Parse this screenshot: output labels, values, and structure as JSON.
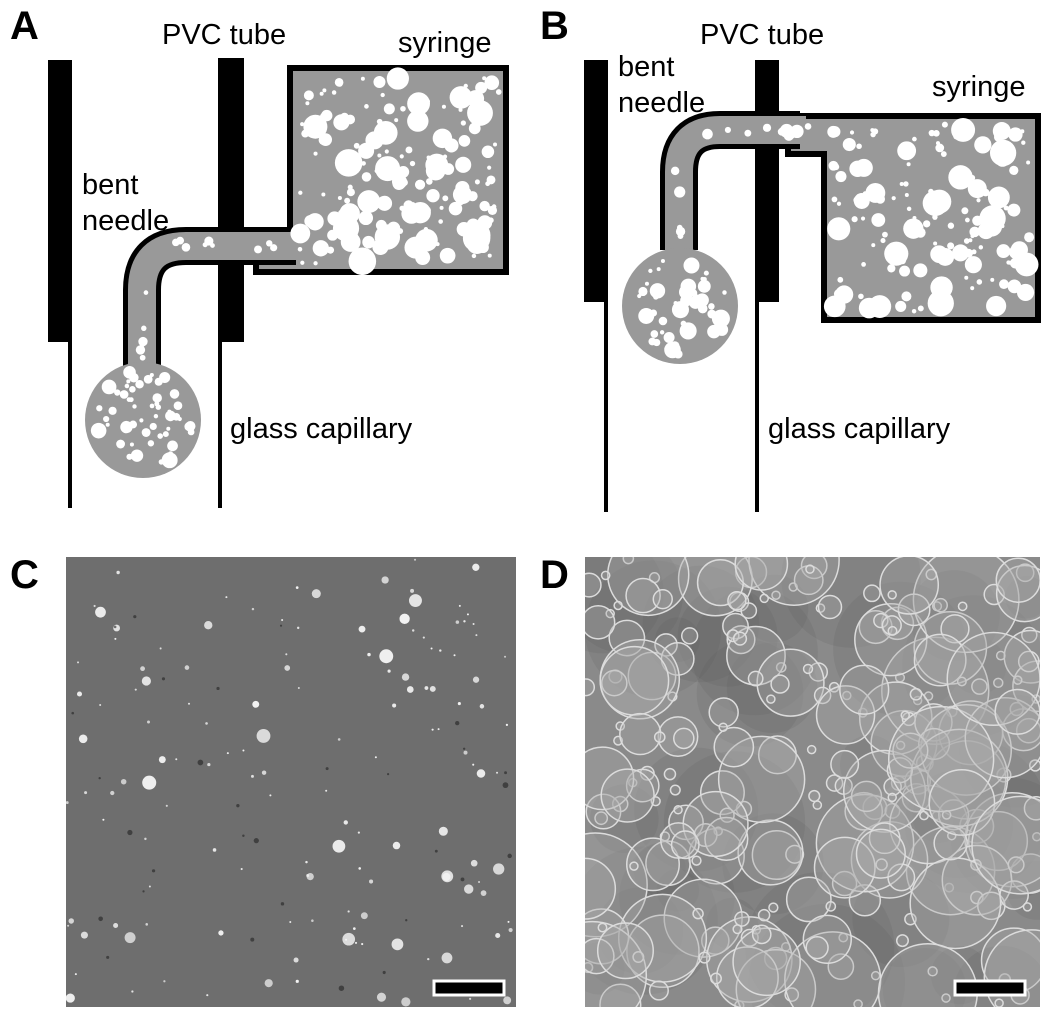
{
  "panels": {
    "A": {
      "letter": "A",
      "labels": {
        "pvc_tube": "PVC tube",
        "syringe": "syringe",
        "bent": "bent",
        "needle": "needle",
        "glass_capillary": "glass capillary"
      }
    },
    "B": {
      "letter": "B",
      "labels": {
        "pvc_tube": "PVC tube",
        "syringe": "syringe",
        "bent": "bent",
        "needle": "needle",
        "glass_capillary": "glass capillary"
      }
    },
    "C": {
      "letter": "C"
    },
    "D": {
      "letter": "D"
    }
  },
  "colors": {
    "fill_gray": "#999999",
    "bubble": "#ffffff",
    "stroke": "#000000",
    "micrograph_c_bg": "#6e6e6e",
    "micrograph_d_bg": "#8a8a8a"
  }
}
